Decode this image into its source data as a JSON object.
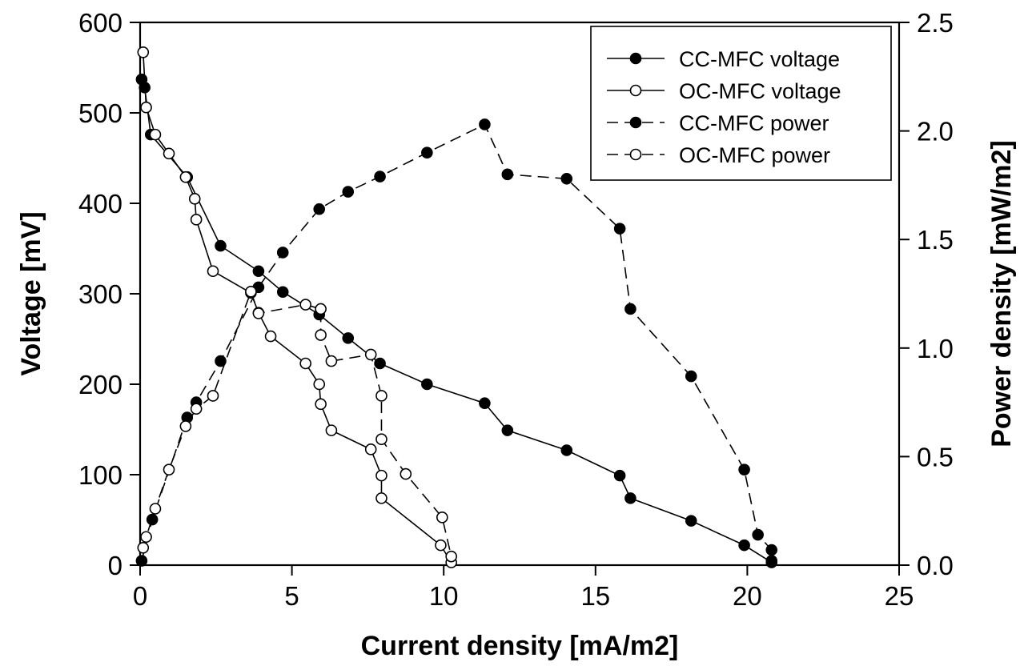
{
  "chart_data": {
    "type": "scatter",
    "xlabel": "Current density [mA/m2]",
    "ylabel": "Voltage [mV]",
    "y2label": "Power density [mW/m2]",
    "xlim": [
      0,
      25
    ],
    "ylim": [
      0,
      600
    ],
    "y2lim": [
      0,
      2.5
    ],
    "xticks": [
      "0",
      "5",
      "10",
      "15",
      "20",
      "25"
    ],
    "yticks": [
      "0",
      "100",
      "200",
      "300",
      "400",
      "500",
      "600"
    ],
    "y2ticks": [
      "0.0",
      "0.5",
      "1.0",
      "1.5",
      "2.0",
      "2.5"
    ],
    "grid": false,
    "legend_position": "top-right",
    "series": [
      {
        "name": "CC-MFC voltage",
        "axis": "left",
        "line": "solid",
        "marker": "filled-circle",
        "x": [
          0.05,
          0.15,
          0.35,
          1.55,
          2.65,
          3.9,
          4.7,
          5.9,
          6.85,
          7.9,
          9.45,
          11.35,
          12.1,
          14.05,
          15.8,
          16.15,
          18.15,
          19.9,
          20.8
        ],
        "y": [
          537,
          528,
          476,
          429,
          353,
          325,
          302,
          277,
          251,
          223,
          200,
          179,
          149,
          127,
          99,
          74,
          49,
          22,
          3
        ]
      },
      {
        "name": "OC-MFC voltage",
        "axis": "left",
        "line": "solid",
        "marker": "open-circle",
        "x": [
          0.1,
          0.2,
          0.5,
          0.95,
          1.5,
          1.8,
          1.85,
          2.4,
          3.65,
          3.9,
          4.3,
          5.45,
          5.9,
          5.95,
          6.3,
          7.6,
          7.95,
          7.95,
          9.9,
          10.25
        ],
        "y": [
          567,
          506,
          476,
          455,
          429,
          405,
          382,
          325,
          301,
          279,
          253,
          223,
          200,
          178,
          149,
          128,
          99,
          74,
          22,
          3
        ]
      },
      {
        "name": "CC-MFC power",
        "axis": "right",
        "line": "dashed",
        "marker": "filled-circle",
        "x": [
          0.05,
          0.4,
          1.55,
          1.85,
          2.65,
          3.9,
          4.7,
          5.9,
          6.85,
          7.9,
          9.45,
          11.35,
          12.1,
          14.05,
          15.8,
          16.15,
          18.15,
          19.9,
          20.35,
          20.8,
          20.8
        ],
        "y": [
          0.02,
          0.21,
          0.68,
          0.75,
          0.94,
          1.28,
          1.44,
          1.64,
          1.72,
          1.79,
          1.9,
          2.03,
          1.8,
          1.78,
          1.55,
          1.18,
          0.87,
          0.44,
          0.14,
          0.07,
          0.02
        ]
      },
      {
        "name": "OC-MFC power",
        "axis": "right",
        "line": "dashed",
        "marker": "open-circle",
        "x": [
          0.1,
          0.2,
          0.5,
          0.95,
          1.5,
          1.85,
          2.4,
          3.65,
          3.9,
          5.45,
          5.95,
          5.95,
          6.3,
          7.6,
          7.95,
          7.95,
          8.75,
          9.95,
          10.25
        ],
        "y": [
          0.08,
          0.13,
          0.26,
          0.44,
          0.64,
          0.72,
          0.78,
          1.26,
          1.16,
          1.2,
          1.18,
          1.06,
          0.94,
          0.97,
          0.78,
          0.58,
          0.42,
          0.22,
          0.04
        ]
      }
    ]
  }
}
